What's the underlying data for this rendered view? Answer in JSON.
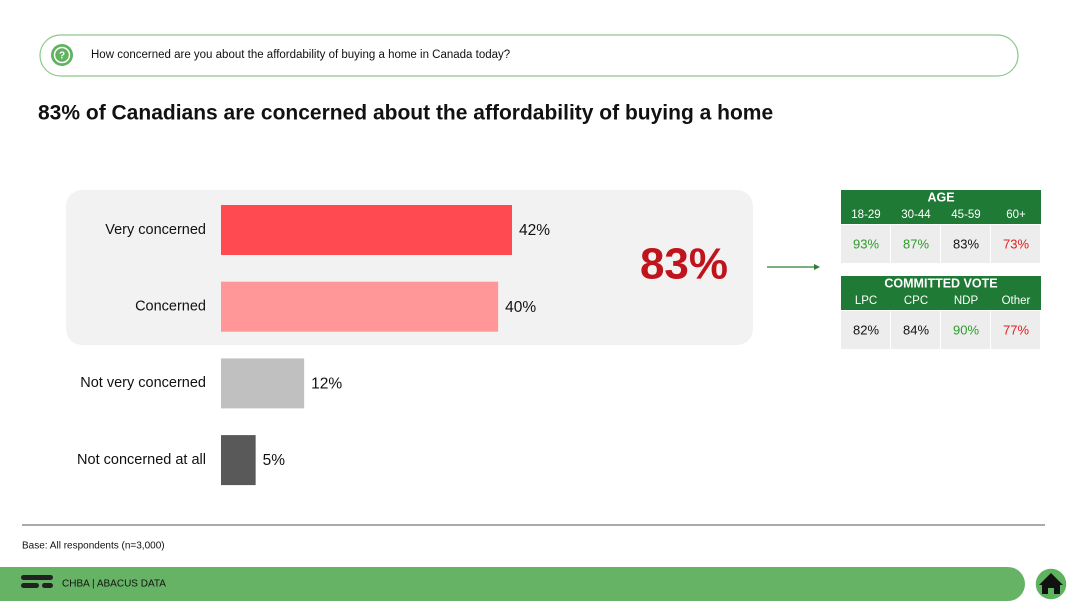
{
  "question": "How concerned are you about the affordability of buying a home in Canada today?",
  "chart_data": {
    "type": "bar",
    "title": "83% of Canadians are concerned about the affordability of buying a home",
    "categories": [
      "Very concerned",
      "Concerned",
      "Not very concerned",
      "Not concerned at all"
    ],
    "values": [
      42,
      40,
      12,
      5
    ],
    "value_labels": [
      "42%",
      "40%",
      "12%",
      "5%"
    ],
    "colors": [
      "#ff4a52",
      "#ff9698",
      "#c0c0c0",
      "#595959"
    ]
  },
  "highlight": "83%",
  "breakdowns": [
    {
      "title": "AGE",
      "headers": [
        "18-29",
        "30-44",
        "45-59",
        "60+"
      ],
      "values": [
        "93%",
        "87%",
        "83%",
        "73%"
      ],
      "colors": [
        "#2e9b2e",
        "#2e9b2e",
        "#111111",
        "#e02020"
      ]
    },
    {
      "title": "COMMITTED VOTE",
      "headers": [
        "LPC",
        "CPC",
        "NDP",
        "Other"
      ],
      "values": [
        "82%",
        "84%",
        "90%",
        "77%"
      ],
      "colors": [
        "#111111",
        "#111111",
        "#2e9b2e",
        "#e02020"
      ]
    }
  ],
  "base_note": "Base: All respondents (n=3,000)",
  "footer": "CHBA | ABACUS DATA"
}
